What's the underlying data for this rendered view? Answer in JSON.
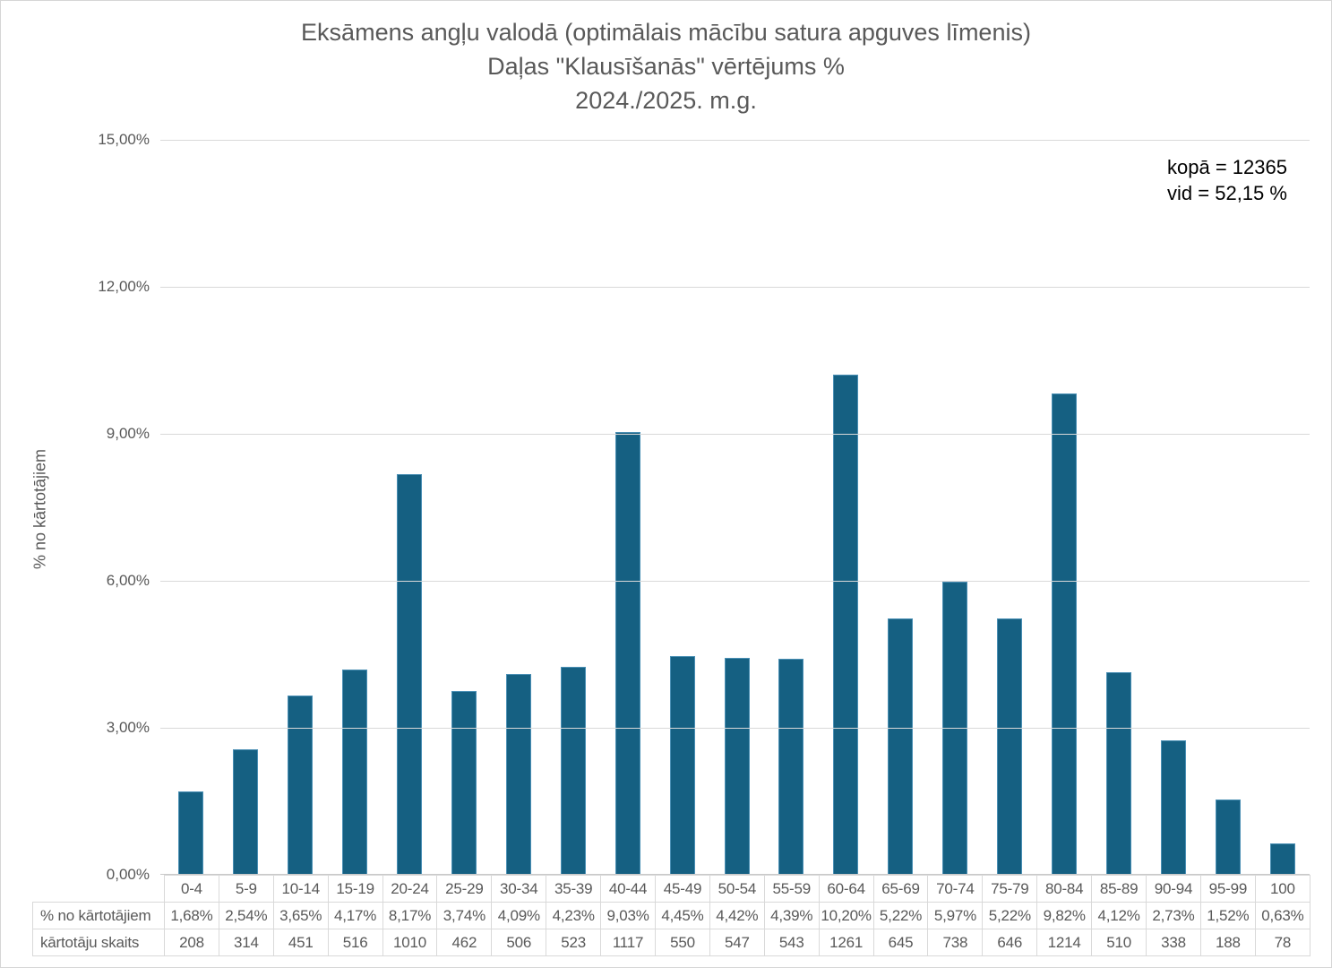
{
  "chart_data": {
    "type": "bar",
    "title_lines": [
      "Eksāmens angļu valodā (optimālais mācību satura apguves līmenis)",
      "Daļas \"Klausīšanās\" vērtējums %",
      "2024./2025. m.g."
    ],
    "ylabel": "% no kārtotājiem",
    "xlabel": "",
    "ylim": [
      0,
      15
    ],
    "grid": true,
    "legend_position": "none",
    "bar_color": "#156082",
    "bar_border_color": "#4a8fb4",
    "yticks": [
      {
        "value": 0,
        "label": "0,00%"
      },
      {
        "value": 3,
        "label": "3,00%"
      },
      {
        "value": 6,
        "label": "6,00%"
      },
      {
        "value": 9,
        "label": "9,00%"
      },
      {
        "value": 12,
        "label": "12,00%"
      },
      {
        "value": 15,
        "label": "15,00%"
      }
    ],
    "categories": [
      "0-4",
      "5-9",
      "10-14",
      "15-19",
      "20-24",
      "25-29",
      "30-34",
      "35-39",
      "40-44",
      "45-49",
      "50-54",
      "55-59",
      "60-64",
      "65-69",
      "70-74",
      "75-79",
      "80-84",
      "85-89",
      "90-94",
      "95-99",
      "100"
    ],
    "series": [
      {
        "name": "% no kārtotājiem",
        "values": [
          1.68,
          2.54,
          3.65,
          4.17,
          8.17,
          3.74,
          4.09,
          4.23,
          9.03,
          4.45,
          4.42,
          4.39,
          10.2,
          5.22,
          5.97,
          5.22,
          9.82,
          4.12,
          2.73,
          1.52,
          0.63
        ],
        "display": [
          "1,68%",
          "2,54%",
          "3,65%",
          "4,17%",
          "8,17%",
          "3,74%",
          "4,09%",
          "4,23%",
          "9,03%",
          "4,45%",
          "4,42%",
          "4,39%",
          "10,20%",
          "5,22%",
          "5,97%",
          "5,22%",
          "9,82%",
          "4,12%",
          "2,73%",
          "1,52%",
          "0,63%"
        ]
      },
      {
        "name": "kārtotāju skaits",
        "values": [
          208,
          314,
          451,
          516,
          1010,
          462,
          506,
          523,
          1117,
          550,
          547,
          543,
          1261,
          645,
          738,
          646,
          1214,
          510,
          338,
          188,
          78
        ]
      }
    ],
    "annotations": [
      "kopā = 12365",
      "vid = 52,15 %"
    ]
  }
}
